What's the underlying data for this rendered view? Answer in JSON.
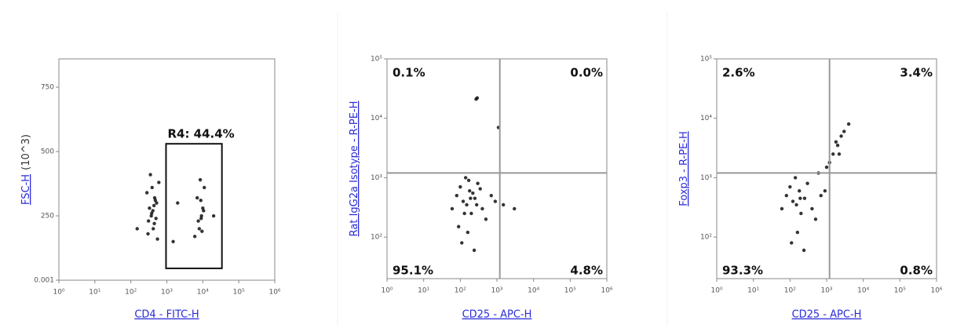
{
  "chart_data": [
    {
      "type": "scatter",
      "xlabel": "CD4 - FITC-H",
      "ylabel": "FSC-H",
      "ylabel_unit": "(10^3)",
      "xscale": "log",
      "yscale": "linear",
      "xlim": [
        1,
        1000000
      ],
      "ylim": [
        0.001,
        860
      ],
      "xticks": [
        {
          "value": 1,
          "label": "10⁰"
        },
        {
          "value": 10,
          "label": "10¹"
        },
        {
          "value": 100,
          "label": "10²"
        },
        {
          "value": 1000,
          "label": "10³"
        },
        {
          "value": 10000,
          "label": "10⁴"
        },
        {
          "value": 100000,
          "label": "10⁵"
        },
        {
          "value": 1000000,
          "label": "10⁶"
        }
      ],
      "yticks": [
        0.001,
        250,
        500,
        750
      ],
      "color": "#111111",
      "x": [
        300,
        450,
        380,
        520,
        280,
        600,
        350,
        420,
        500,
        330,
        460,
        390,
        550,
        310,
        410,
        480,
        370,
        440,
        6000,
        8000,
        9000,
        10000,
        7000,
        11000,
        8500,
        9500,
        7500,
        10500,
        8800,
        9200,
        150,
        2000,
        20000,
        1500
      ],
      "values": [
        180,
        220,
        260,
        300,
        340,
        380,
        410,
        200,
        240,
        280,
        320,
        360,
        160,
        230,
        270,
        310,
        250,
        290,
        170,
        200,
        240,
        280,
        320,
        360,
        390,
        190,
        230,
        270,
        310,
        250,
        200,
        300,
        250,
        150
      ],
      "gate": {
        "x": [
          950,
          34000
        ],
        "y": [
          46,
          530
        ],
        "value": 44.4,
        "value_label": "R4: 44.4%"
      }
    },
    {
      "type": "scatter",
      "xlabel": "CD25 - APC-H",
      "ylabel": "Rat IgG2a Isotype - R-PE-H",
      "xscale": "log",
      "yscale": "log",
      "xlim": [
        1,
        1000000
      ],
      "ylim": [
        20,
        100000
      ],
      "xticks": [
        {
          "value": 1,
          "label": "10⁰"
        },
        {
          "value": 10,
          "label": "10¹"
        },
        {
          "value": 100,
          "label": "10²"
        },
        {
          "value": 1000,
          "label": "10³"
        },
        {
          "value": 10000,
          "label": "10⁴"
        },
        {
          "value": 100000,
          "label": "10⁵"
        },
        {
          "value": 1000000,
          "label": "10⁶"
        }
      ],
      "yticks": [
        {
          "value": 100,
          "label": "10²"
        },
        {
          "value": 1000,
          "label": "10³"
        },
        {
          "value": 10000,
          "label": "10⁴"
        },
        {
          "value": 100000,
          "label": "10⁵"
        }
      ],
      "color": "#111111",
      "x": [
        60,
        80,
        100,
        120,
        150,
        180,
        200,
        250,
        300,
        400,
        500,
        700,
        900,
        1500,
        3000,
        90,
        130,
        170,
        220,
        280,
        350,
        110,
        160,
        140,
        190,
        240,
        270,
        1100,
        290
      ],
      "values": [
        300,
        500,
        700,
        400,
        350,
        600,
        250,
        450,
        800,
        300,
        200,
        500,
        400,
        350,
        300,
        150,
        250,
        900,
        550,
        350,
        650,
        80,
        120,
        1000,
        450,
        60,
        21000,
        7000,
        22000
      ],
      "quadrant_x": 1200,
      "quadrant_y": 1200,
      "quadrants": {
        "values": [
          0.1,
          0.0,
          95.1,
          4.8
        ],
        "value_labels": [
          "0.1%",
          "0.0%",
          "95.1%",
          "4.8%"
        ]
      }
    },
    {
      "type": "scatter",
      "xlabel": "CD25 - APC-H",
      "ylabel": "Foxp3 - R-PE-H",
      "xscale": "log",
      "yscale": "log",
      "xlim": [
        1,
        1000000
      ],
      "ylim": [
        20,
        100000
      ],
      "xticks": [
        {
          "value": 1,
          "label": "10⁰"
        },
        {
          "value": 10,
          "label": "10¹"
        },
        {
          "value": 100,
          "label": "10²"
        },
        {
          "value": 1000,
          "label": "10³"
        },
        {
          "value": 10000,
          "label": "10⁴"
        },
        {
          "value": 100000,
          "label": "10⁵"
        },
        {
          "value": 1000000,
          "label": "10⁶"
        }
      ],
      "yticks": [
        {
          "value": 100,
          "label": "10²"
        },
        {
          "value": 1000,
          "label": "10³"
        },
        {
          "value": 10000,
          "label": "10⁴"
        },
        {
          "value": 100000,
          "label": "10⁵"
        }
      ],
      "color": "#111111",
      "x": [
        60,
        80,
        100,
        120,
        150,
        180,
        200,
        250,
        300,
        400,
        500,
        700,
        900,
        110,
        160,
        140,
        190,
        240,
        1000,
        1500,
        2000,
        2500,
        3000,
        4000,
        1200,
        1800,
        2200,
        600
      ],
      "values": [
        300,
        500,
        700,
        400,
        350,
        600,
        250,
        450,
        800,
        300,
        200,
        500,
        600,
        80,
        120,
        1000,
        450,
        60,
        1500,
        2500,
        3500,
        5000,
        6000,
        8000,
        1800,
        4000,
        2500,
        1200
      ],
      "quadrant_x": 1200,
      "quadrant_y": 1200,
      "quadrants": {
        "values": [
          2.6,
          3.4,
          93.3,
          0.8
        ],
        "value_labels": [
          "2.6%",
          "3.4%",
          "93.3%",
          "0.8%"
        ]
      }
    }
  ]
}
